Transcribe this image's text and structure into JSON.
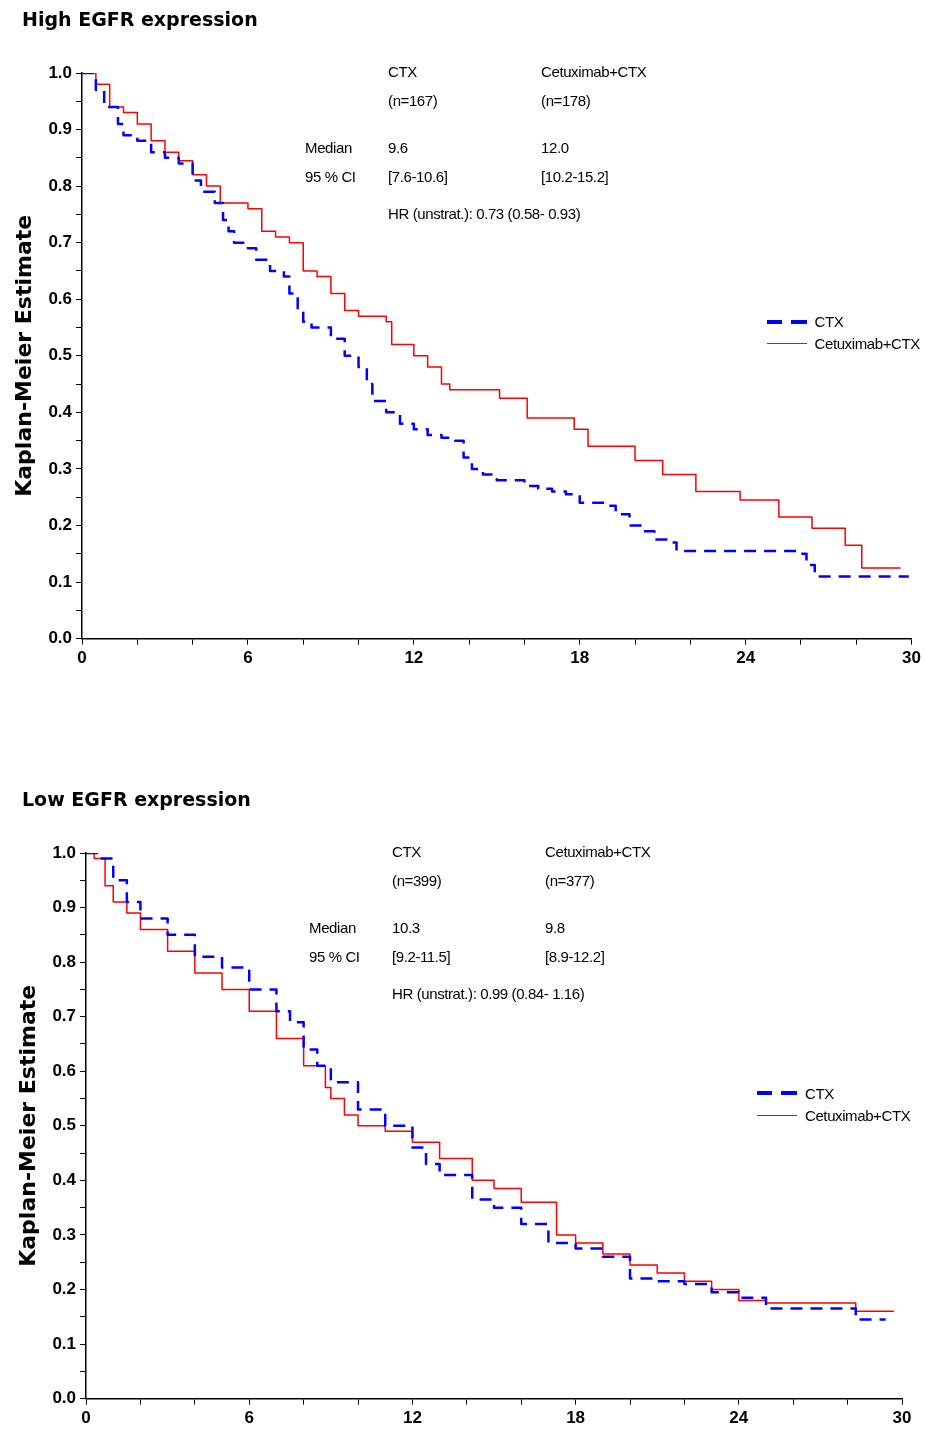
{
  "chart_data": [
    {
      "type": "step",
      "title": "High EGFR expression",
      "ylabel": "Kaplan-Meier Estimate",
      "xlim": [
        0,
        30
      ],
      "xticks": [
        0,
        {
          "value": 2,
          "label": null
        },
        {
          "value": 4,
          "label": null
        },
        6,
        {
          "value": 8,
          "label": null
        },
        {
          "value": 10,
          "label": null
        },
        12,
        {
          "value": 14,
          "label": null
        },
        {
          "value": 16,
          "label": null
        },
        18,
        {
          "value": 20,
          "label": null
        },
        {
          "value": 22,
          "label": null
        },
        24,
        {
          "value": 26,
          "label": null
        },
        {
          "value": 28,
          "label": null
        },
        30
      ],
      "ylim": [
        0,
        1
      ],
      "yticks": [
        {
          "value": 0,
          "label": "0.0"
        },
        {
          "value": 0.05,
          "label": null
        },
        0.1,
        {
          "value": 0.15,
          "label": null
        },
        0.2,
        {
          "value": 0.25,
          "label": null
        },
        0.3,
        {
          "value": 0.35,
          "label": null
        },
        0.4,
        {
          "value": 0.45,
          "label": null
        },
        0.5,
        {
          "value": 0.55,
          "label": null
        },
        0.6,
        {
          "value": 0.65,
          "label": null
        },
        0.7,
        {
          "value": 0.75,
          "label": null
        },
        0.8,
        {
          "value": 0.85,
          "label": null
        },
        0.9,
        {
          "value": 0.95,
          "label": null
        },
        {
          "value": 1,
          "label": "1.0"
        }
      ],
      "grid": false,
      "legend": "right",
      "annotations": [
        "CTX",
        "Cetuximab+CTX",
        "(n=167)",
        "(n=178)",
        "Median",
        "9.6",
        "12.0",
        "95 % CI",
        "[7.6-10.6]",
        "[10.2-15.2]",
        "HR (unstrat.):  0.73 (0.58- 0.93)"
      ],
      "series": [
        {
          "name": "CTX",
          "color": "#0000ff",
          "line_style": "dashed",
          "x": [
            0,
            0.5,
            0.8,
            1.3,
            1.5,
            2,
            2.5,
            3,
            3.5,
            4,
            4.3,
            4.8,
            5.1,
            5.3,
            5.5,
            6,
            6.3,
            6.8,
            7.3,
            7.5,
            7.8,
            8,
            8.3,
            9,
            9.5,
            10,
            10.3,
            10.5,
            11,
            11.5,
            12,
            12.5,
            13,
            13.5,
            13.8,
            14.1,
            14.5,
            15,
            16,
            16.5,
            17,
            17.5,
            18,
            19,
            19.3,
            19.8,
            20.3,
            20.7,
            21.2,
            21.5,
            26,
            26.2,
            26.5,
            29.9
          ],
          "values": [
            1.0,
            0.97,
            0.94,
            0.91,
            0.89,
            0.88,
            0.86,
            0.85,
            0.84,
            0.81,
            0.79,
            0.77,
            0.74,
            0.72,
            0.7,
            0.69,
            0.67,
            0.65,
            0.64,
            0.61,
            0.58,
            0.56,
            0.55,
            0.53,
            0.5,
            0.48,
            0.45,
            0.42,
            0.4,
            0.38,
            0.37,
            0.36,
            0.355,
            0.35,
            0.32,
            0.3,
            0.29,
            0.28,
            0.27,
            0.265,
            0.26,
            0.255,
            0.24,
            0.235,
            0.22,
            0.2,
            0.19,
            0.175,
            0.17,
            0.155,
            0.15,
            0.13,
            0.11,
            0.11
          ]
        },
        {
          "name": "Cetuximab+CTX",
          "color": "#ff0000",
          "line_style": "solid",
          "x": [
            0,
            0.5,
            1,
            1.5,
            2,
            2.5,
            3,
            3.5,
            4,
            4.5,
            5,
            6,
            6.5,
            7,
            7.5,
            8,
            8.5,
            9,
            9.5,
            10,
            11,
            11.2,
            12,
            12.5,
            13,
            13.3,
            15.1,
            16.1,
            16.5,
            17.8,
            18.3,
            19,
            20,
            21,
            22.2,
            23.8,
            25.2,
            26.4,
            27.6,
            28.2,
            29.6
          ],
          "values": [
            1.0,
            0.98,
            0.94,
            0.93,
            0.91,
            0.88,
            0.86,
            0.845,
            0.82,
            0.8,
            0.77,
            0.76,
            0.72,
            0.71,
            0.7,
            0.65,
            0.64,
            0.61,
            0.58,
            0.57,
            0.56,
            0.52,
            0.5,
            0.48,
            0.45,
            0.44,
            0.425,
            0.39,
            0.39,
            0.37,
            0.34,
            0.34,
            0.315,
            0.29,
            0.26,
            0.245,
            0.215,
            0.195,
            0.165,
            0.125,
            0.125
          ]
        }
      ]
    },
    {
      "type": "step",
      "title": "Low EGFR expression",
      "ylabel": "Kaplan-Meier Estimate",
      "xlim": [
        0,
        30
      ],
      "xticks": [
        0,
        {
          "value": 2,
          "label": null
        },
        {
          "value": 4,
          "label": null
        },
        6,
        {
          "value": 8,
          "label": null
        },
        {
          "value": 10,
          "label": null
        },
        12,
        {
          "value": 14,
          "label": null
        },
        {
          "value": 16,
          "label": null
        },
        18,
        {
          "value": 20,
          "label": null
        },
        {
          "value": 22,
          "label": null
        },
        24,
        {
          "value": 26,
          "label": null
        },
        {
          "value": 28,
          "label": null
        },
        30
      ],
      "ylim": [
        0,
        1
      ],
      "yticks": [
        {
          "value": 0,
          "label": "0.0"
        },
        {
          "value": 0.05,
          "label": null
        },
        0.1,
        {
          "value": 0.15,
          "label": null
        },
        0.2,
        {
          "value": 0.25,
          "label": null
        },
        0.3,
        {
          "value": 0.35,
          "label": null
        },
        0.4,
        {
          "value": 0.45,
          "label": null
        },
        0.5,
        {
          "value": 0.55,
          "label": null
        },
        0.6,
        {
          "value": 0.65,
          "label": null
        },
        0.7,
        {
          "value": 0.75,
          "label": null
        },
        0.8,
        {
          "value": 0.85,
          "label": null
        },
        0.9,
        {
          "value": 0.95,
          "label": null
        },
        {
          "value": 1,
          "label": "1.0"
        }
      ],
      "grid": false,
      "legend": "right",
      "annotations": [
        "CTX",
        "Cetuximab+CTX",
        "(n=399)",
        "(n=377)",
        "Median",
        "10.3",
        "9.8",
        "95 % CI",
        "[9.2-11.5]",
        "[8.9-12.2]",
        "HR (unstrat.):  0.99 (0.84- 1.16)"
      ],
      "series": [
        {
          "name": "CTX",
          "color": "#0000ff",
          "line_style": "dashed",
          "x": [
            0,
            0.5,
            1,
            1.5,
            2,
            3,
            4,
            5,
            6,
            7,
            7.5,
            8,
            8.5,
            9,
            10,
            11,
            12,
            12.5,
            13,
            14.2,
            15,
            16,
            17,
            18,
            19,
            20,
            21,
            22,
            23,
            24,
            25,
            27,
            28.3,
            29.4
          ],
          "values": [
            1.0,
            0.99,
            0.95,
            0.91,
            0.88,
            0.85,
            0.81,
            0.79,
            0.75,
            0.71,
            0.69,
            0.64,
            0.61,
            0.58,
            0.53,
            0.5,
            0.46,
            0.43,
            0.41,
            0.365,
            0.35,
            0.32,
            0.285,
            0.275,
            0.26,
            0.22,
            0.215,
            0.21,
            0.195,
            0.185,
            0.165,
            0.165,
            0.145,
            0.145
          ]
        },
        {
          "name": "Cetuximab+CTX",
          "color": "#ff0000",
          "line_style": "solid",
          "x": [
            0,
            0.3,
            0.7,
            1,
            1.5,
            2,
            3,
            4,
            5,
            6,
            7,
            8,
            8.8,
            9,
            9.5,
            10,
            11,
            12,
            13,
            14.2,
            15,
            16,
            17.3,
            18,
            19,
            20,
            21,
            22,
            23,
            24,
            25,
            27,
            28.3,
            29.7
          ],
          "values": [
            1.0,
            0.99,
            0.94,
            0.91,
            0.89,
            0.86,
            0.82,
            0.78,
            0.75,
            0.71,
            0.66,
            0.61,
            0.57,
            0.55,
            0.52,
            0.5,
            0.49,
            0.47,
            0.44,
            0.4,
            0.385,
            0.36,
            0.3,
            0.285,
            0.265,
            0.245,
            0.23,
            0.215,
            0.2,
            0.18,
            0.175,
            0.175,
            0.16,
            0.16
          ]
        }
      ]
    }
  ]
}
